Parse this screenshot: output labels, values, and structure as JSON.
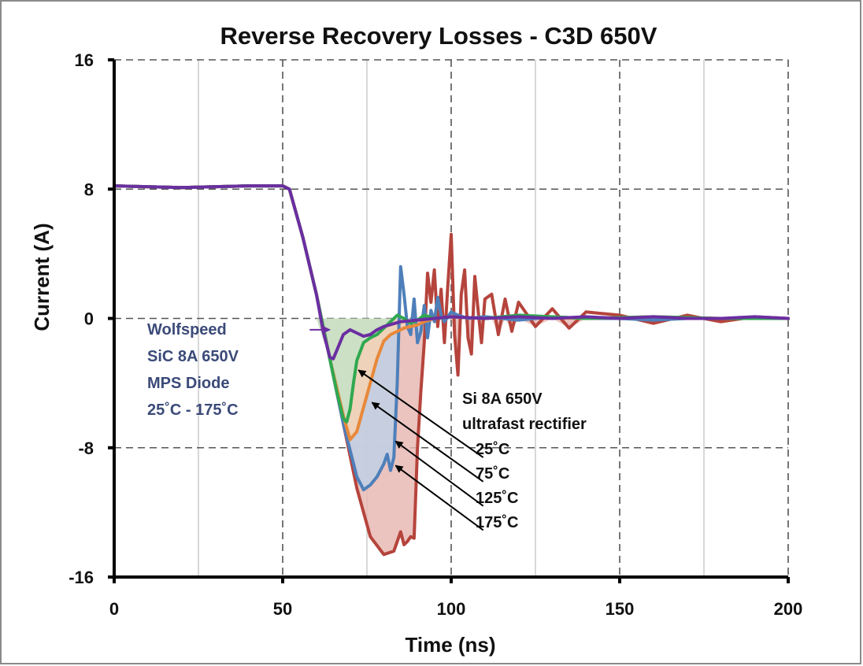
{
  "chart_data": {
    "type": "line",
    "title": "Reverse Recovery Losses - C3D 650V",
    "xlabel": "Time (ns)",
    "ylabel": "Current (A)",
    "xlim": [
      0,
      200
    ],
    "ylim": [
      -16,
      16
    ],
    "xticks": [
      0,
      50,
      100,
      150,
      200
    ],
    "yticks": [
      -16,
      -8,
      0,
      8,
      16
    ],
    "grid": true,
    "series": [
      {
        "name": "175˚C",
        "color": "#b5443c",
        "fill": "#e8b8b4",
        "x": [
          0,
          20,
          40,
          50,
          52,
          56,
          60,
          64,
          68,
          72,
          76,
          80,
          83,
          85,
          86,
          87,
          88,
          89,
          90,
          91,
          92,
          93,
          94,
          95,
          96,
          97,
          98,
          99,
          100,
          101,
          102,
          103,
          104,
          105,
          106,
          107,
          108,
          109,
          110,
          112,
          114,
          116,
          118,
          120,
          125,
          130,
          135,
          140,
          150,
          160,
          170,
          180,
          190,
          200
        ],
        "y": [
          8.2,
          8.1,
          8.2,
          8.2,
          8.0,
          5.0,
          1.5,
          -2.5,
          -6.5,
          -10.5,
          -13.5,
          -14.6,
          -14.4,
          -13.2,
          -14.0,
          -13.8,
          -13.5,
          -13.6,
          -8.0,
          -4.5,
          -1.5,
          2.8,
          1.0,
          3.0,
          -0.5,
          1.8,
          -1.5,
          2.0,
          5.2,
          -1.0,
          -3.5,
          1.5,
          3.0,
          -1.2,
          -2.2,
          2.6,
          0.5,
          -1.5,
          1.2,
          1.5,
          -1.0,
          1.2,
          -0.8,
          1.0,
          -0.5,
          0.6,
          -0.6,
          0.4,
          0.2,
          -0.3,
          0.2,
          -0.2,
          0.1,
          0.0
        ]
      },
      {
        "name": "125˚C",
        "color": "#4e7fba",
        "fill": "#bfd0e4",
        "x": [
          0,
          20,
          40,
          50,
          52,
          56,
          60,
          64,
          68,
          72,
          74,
          76,
          78,
          80,
          81,
          82,
          83,
          84,
          85,
          86,
          87,
          88,
          89,
          90,
          91,
          92,
          93,
          94,
          95,
          96,
          97,
          98,
          100,
          102,
          105,
          110,
          120,
          130,
          140,
          150,
          160,
          170,
          180,
          190,
          200
        ],
        "y": [
          8.2,
          8.1,
          8.2,
          8.2,
          8.0,
          5.0,
          1.5,
          -2.5,
          -6.5,
          -9.8,
          -10.6,
          -10.3,
          -9.8,
          -9.0,
          -8.4,
          -9.4,
          -8.6,
          -4.0,
          3.2,
          1.5,
          -0.5,
          -1.0,
          1.2,
          -1.5,
          -0.8,
          0.8,
          -1.2,
          0.5,
          -0.2,
          1.3,
          0.2,
          -0.2,
          0.4,
          0.2,
          0.0,
          0.1,
          -0.1,
          0.1,
          0.0,
          0.0,
          -0.1,
          0.0,
          0.0,
          0.0,
          0.0
        ]
      },
      {
        "name": "75˚C",
        "color": "#e8883a",
        "fill": "#f5d2b3",
        "x": [
          0,
          20,
          40,
          50,
          52,
          56,
          60,
          64,
          68,
          70,
          72,
          74,
          76,
          78,
          80,
          82,
          84,
          86,
          88,
          90,
          92,
          95,
          100,
          110,
          120,
          140,
          160,
          180,
          200
        ],
        "y": [
          8.2,
          8.1,
          8.2,
          8.2,
          8.0,
          5.0,
          1.5,
          -2.5,
          -6.0,
          -7.5,
          -7.0,
          -5.5,
          -4.0,
          -2.5,
          -1.4,
          -1.0,
          -0.8,
          -0.6,
          -0.5,
          -0.4,
          -0.2,
          0.0,
          0.1,
          0.0,
          0.1,
          0.0,
          0.1,
          0.0,
          0.0
        ]
      },
      {
        "name": "25˚C",
        "color": "#2fa84f",
        "fill": "#c4e3c7",
        "x": [
          0,
          20,
          40,
          50,
          52,
          56,
          60,
          64,
          66,
          68,
          69,
          70,
          71,
          72,
          74,
          76,
          78,
          80,
          82,
          84,
          86,
          88,
          90,
          92,
          95,
          100,
          110,
          120,
          140,
          160,
          180,
          200
        ],
        "y": [
          8.2,
          8.1,
          8.2,
          8.2,
          8.0,
          5.0,
          1.5,
          -2.5,
          -4.5,
          -6.2,
          -6.4,
          -5.6,
          -4.0,
          -2.6,
          -1.5,
          -1.2,
          -1.0,
          -0.6,
          -0.2,
          0.2,
          0.0,
          -0.3,
          -0.1,
          0.2,
          0.0,
          0.1,
          0.0,
          0.2,
          0.0,
          0.1,
          0.0,
          0.0
        ]
      },
      {
        "name": "Wolfspeed SiC 8A 650V MPS Diode",
        "color": "#6b2ea1",
        "fill": "",
        "x": [
          0,
          20,
          40,
          50,
          52,
          56,
          60,
          62,
          64,
          65,
          66,
          68,
          70,
          72,
          74,
          76,
          78,
          80,
          85,
          90,
          95,
          100,
          110,
          120,
          130,
          140,
          150,
          160,
          170,
          180,
          190,
          200
        ],
        "y": [
          8.2,
          8.1,
          8.2,
          8.2,
          8.0,
          5.0,
          1.5,
          -0.8,
          -2.4,
          -2.5,
          -2.0,
          -1.0,
          -0.7,
          -0.9,
          -1.1,
          -1.0,
          -0.7,
          -0.5,
          -0.2,
          -0.1,
          0.0,
          0.1,
          0.0,
          0.1,
          0.0,
          0.1,
          0.0,
          0.1,
          0.0,
          0.0,
          0.1,
          0.0
        ]
      }
    ],
    "annotations": {
      "sic_label": [
        "Wolfspeed",
        "SiC 8A 650V",
        "MPS Diode",
        "25˚C - 175˚C"
      ],
      "si_label": [
        "Si 8A 650V",
        "ultrafast rectifier"
      ],
      "temps": [
        "25˚C",
        "75˚C",
        "125˚C",
        "175˚C"
      ]
    }
  }
}
